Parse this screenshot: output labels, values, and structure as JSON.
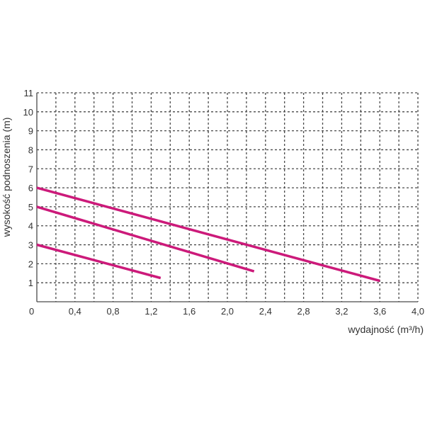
{
  "chart_data": {
    "type": "line",
    "xlabel": "wydajność (m³/h)",
    "ylabel": "wysokość podnoszenia (m)",
    "xlim": [
      0,
      4.0
    ],
    "ylim": [
      0,
      11
    ],
    "x_ticks": [
      "0",
      "0,4",
      "0,8",
      "1,2",
      "1,6",
      "2,0",
      "2,4",
      "2,8",
      "3,2",
      "3,6",
      "4,0"
    ],
    "y_ticks": [
      "1",
      "2",
      "3",
      "4",
      "5",
      "6",
      "7",
      "8",
      "9",
      "10",
      "11"
    ],
    "grid": true,
    "line_color": "#cc1a7a",
    "series": [
      {
        "x": [
          0,
          3.6
        ],
        "y": [
          6.0,
          1.1
        ]
      },
      {
        "x": [
          0,
          2.28
        ],
        "y": [
          5.0,
          1.6
        ]
      },
      {
        "x": [
          0,
          1.3
        ],
        "y": [
          3.0,
          1.25
        ]
      }
    ]
  }
}
